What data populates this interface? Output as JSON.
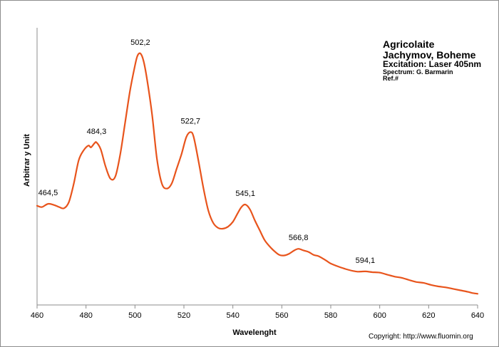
{
  "chart_data": {
    "type": "line",
    "xlabel": "Wavelenght",
    "ylabel": "Arbitrar y Unit",
    "xlim": [
      460,
      640
    ],
    "x_ticks": [
      "460",
      "480",
      "500",
      "520",
      "540",
      "560",
      "580",
      "600",
      "620",
      "640"
    ],
    "y_ticks_shown": false,
    "grid": false,
    "series": [
      {
        "color": "#e8541c",
        "points": [
          [
            460,
            0.41
          ],
          [
            462,
            0.405
          ],
          [
            464.5,
            0.418
          ],
          [
            467,
            0.413
          ],
          [
            469,
            0.405
          ],
          [
            471,
            0.4
          ],
          [
            473,
            0.425
          ],
          [
            475,
            0.5
          ],
          [
            477,
            0.595
          ],
          [
            479,
            0.635
          ],
          [
            481,
            0.655
          ],
          [
            482,
            0.648
          ],
          [
            483.5,
            0.665
          ],
          [
            484.3,
            0.668
          ],
          [
            486,
            0.64
          ],
          [
            488,
            0.57
          ],
          [
            490,
            0.52
          ],
          [
            492,
            0.53
          ],
          [
            494,
            0.62
          ],
          [
            496,
            0.75
          ],
          [
            498,
            0.88
          ],
          [
            500,
            0.98
          ],
          [
            501,
            1.02
          ],
          [
            502.2,
            1.03
          ],
          [
            503.5,
            1.0
          ],
          [
            505,
            0.92
          ],
          [
            507,
            0.78
          ],
          [
            509,
            0.6
          ],
          [
            511,
            0.5
          ],
          [
            513,
            0.48
          ],
          [
            515,
            0.5
          ],
          [
            517,
            0.56
          ],
          [
            519,
            0.62
          ],
          [
            521,
            0.69
          ],
          [
            522.7,
            0.71
          ],
          [
            524,
            0.69
          ],
          [
            526,
            0.59
          ],
          [
            528,
            0.48
          ],
          [
            530,
            0.39
          ],
          [
            532,
            0.34
          ],
          [
            534,
            0.32
          ],
          [
            536,
            0.317
          ],
          [
            538,
            0.325
          ],
          [
            540,
            0.345
          ],
          [
            542,
            0.38
          ],
          [
            543.5,
            0.405
          ],
          [
            545.1,
            0.415
          ],
          [
            547,
            0.395
          ],
          [
            549,
            0.35
          ],
          [
            551,
            0.31
          ],
          [
            553,
            0.27
          ],
          [
            555,
            0.245
          ],
          [
            557,
            0.225
          ],
          [
            559,
            0.21
          ],
          [
            561,
            0.208
          ],
          [
            563,
            0.215
          ],
          [
            565,
            0.228
          ],
          [
            566.8,
            0.235
          ],
          [
            569,
            0.228
          ],
          [
            571,
            0.222
          ],
          [
            573,
            0.21
          ],
          [
            575,
            0.205
          ],
          [
            578,
            0.188
          ],
          [
            580,
            0.175
          ],
          [
            583,
            0.163
          ],
          [
            586,
            0.153
          ],
          [
            589,
            0.145
          ],
          [
            591,
            0.142
          ],
          [
            594.1,
            0.143
          ],
          [
            597,
            0.14
          ],
          [
            600,
            0.138
          ],
          [
            603,
            0.13
          ],
          [
            606,
            0.122
          ],
          [
            609,
            0.117
          ],
          [
            612,
            0.108
          ],
          [
            615,
            0.1
          ],
          [
            618,
            0.096
          ],
          [
            621,
            0.088
          ],
          [
            624,
            0.082
          ],
          [
            627,
            0.078
          ],
          [
            630,
            0.072
          ],
          [
            633,
            0.066
          ],
          [
            636,
            0.06
          ],
          [
            638,
            0.055
          ],
          [
            640,
            0.052
          ]
        ]
      }
    ],
    "peak_labels": [
      {
        "x": 464.5,
        "text": "464,5"
      },
      {
        "x": 484.3,
        "text": "484,3"
      },
      {
        "x": 502.2,
        "text": "502,2"
      },
      {
        "x": 522.7,
        "text": "522,7"
      },
      {
        "x": 545.1,
        "text": "545,1"
      },
      {
        "x": 566.8,
        "text": "566,8"
      },
      {
        "x": 594.1,
        "text": "594,1"
      }
    ]
  },
  "info": {
    "mineral": "Agricolaite",
    "locality": "Jachymov,  Boheme",
    "excitation": "Excitation:  Laser 405nm",
    "spectrum": "Spectrum: G. Barmarin",
    "ref": "Ref.#"
  },
  "copyright": "Copyright: http://www.fluomin.org"
}
